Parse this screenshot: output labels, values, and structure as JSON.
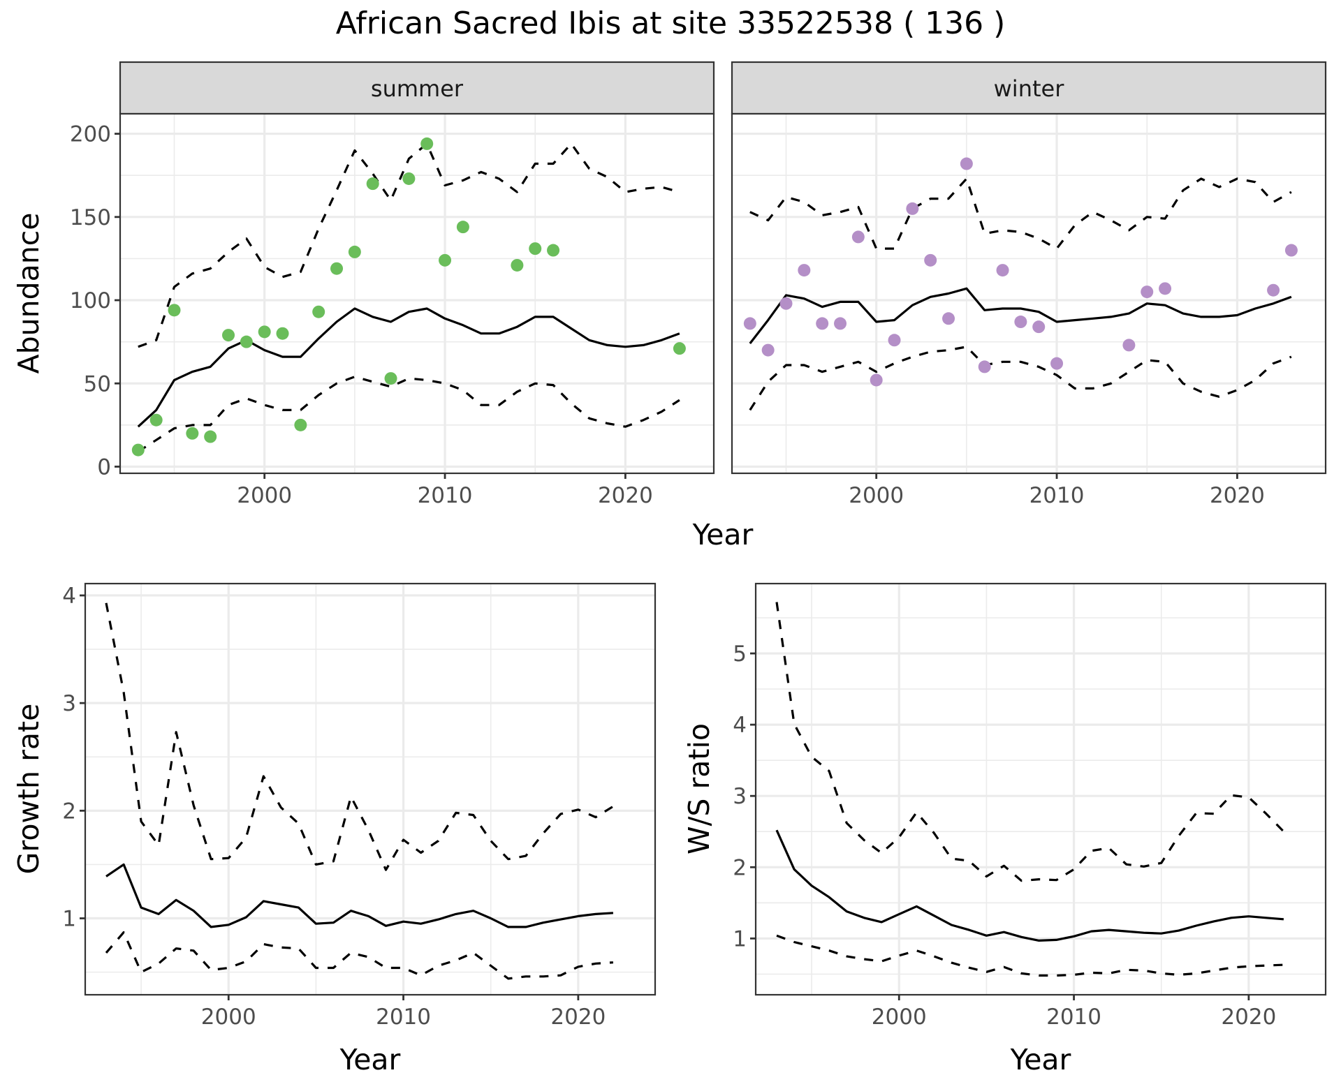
{
  "chart_data": [
    {
      "type": "line",
      "panel": "abundance",
      "title": "African Sacred Ibis at site 33522538 ( 136 )",
      "xlabel": "Year",
      "ylabel": "Abundance",
      "facets": [
        "summer",
        "winter"
      ],
      "xlim": [
        1992,
        2024.9
      ],
      "ylim": [
        -4,
        212
      ],
      "x_ticks": [
        2000,
        2010,
        2020
      ],
      "y_ticks": [
        0,
        50,
        100,
        150,
        200
      ],
      "grid": true,
      "years": [
        1993,
        1994,
        1995,
        1996,
        1997,
        1998,
        1999,
        2000,
        2001,
        2002,
        2003,
        2004,
        2005,
        2006,
        2007,
        2008,
        2009,
        2010,
        2011,
        2012,
        2013,
        2014,
        2015,
        2016,
        2017,
        2018,
        2019,
        2020,
        2021,
        2022,
        2023
      ],
      "series": [
        {
          "facet": "summer",
          "point_color": "#6abd5a",
          "points": {
            "x": [
              1993,
              1994,
              1995,
              1996,
              1997,
              1998,
              1999,
              2000,
              2001,
              2002,
              2003,
              2004,
              2005,
              2006,
              2007,
              2008,
              2009,
              2010,
              2011,
              2014,
              2015,
              2016,
              2023
            ],
            "y": [
              10,
              28,
              94,
              20,
              18,
              79,
              75,
              81,
              80,
              25,
              93,
              119,
              129,
              170,
              53,
              173,
              194,
              124,
              144,
              121,
              131,
              130,
              71
            ]
          },
          "trend": [
            24,
            34,
            52,
            57,
            60,
            71,
            76,
            70,
            66,
            66,
            77,
            87,
            95,
            90,
            87,
            93,
            95,
            89,
            85,
            80,
            80,
            84,
            90,
            90,
            83,
            76,
            73,
            72,
            73,
            76,
            80
          ],
          "upper": [
            72,
            76,
            108,
            116,
            119,
            129,
            137,
            120,
            114,
            117,
            143,
            166,
            190,
            176,
            160,
            185,
            194,
            169,
            172,
            177,
            173,
            165,
            182,
            182,
            194,
            179,
            174,
            165,
            167,
            168,
            165
          ],
          "lower": [
            9,
            16,
            23,
            25,
            25,
            37,
            41,
            37,
            34,
            34,
            43,
            50,
            54,
            51,
            48,
            53,
            52,
            50,
            46,
            37,
            37,
            45,
            50,
            49,
            38,
            29,
            26,
            24,
            28,
            33,
            40
          ]
        },
        {
          "facet": "winter",
          "point_color": "#b48fc7",
          "points": {
            "x": [
              1993,
              1994,
              1995,
              1996,
              1997,
              1998,
              1999,
              2000,
              2001,
              2002,
              2003,
              2004,
              2005,
              2006,
              2007,
              2008,
              2009,
              2010,
              2014,
              2015,
              2016,
              2022,
              2023
            ],
            "y": [
              86,
              70,
              98,
              118,
              86,
              86,
              138,
              52,
              76,
              155,
              124,
              89,
              182,
              60,
              118,
              87,
              84,
              62,
              73,
              105,
              107,
              106,
              130
            ]
          },
          "trend": [
            74,
            88,
            103,
            101,
            96,
            99,
            99,
            87,
            88,
            97,
            102,
            104,
            107,
            94,
            95,
            95,
            93,
            87,
            88,
            89,
            90,
            92,
            98,
            97,
            92,
            90,
            90,
            91,
            95,
            98,
            102
          ],
          "upper": [
            153,
            148,
            162,
            159,
            151,
            153,
            156,
            131,
            131,
            155,
            161,
            161,
            173,
            140,
            142,
            141,
            137,
            131,
            145,
            153,
            148,
            142,
            150,
            149,
            166,
            173,
            168,
            173,
            171,
            159,
            165
          ],
          "lower": [
            34,
            51,
            61,
            61,
            57,
            60,
            63,
            57,
            62,
            66,
            69,
            70,
            72,
            61,
            63,
            63,
            60,
            55,
            47,
            47,
            50,
            57,
            64,
            63,
            50,
            45,
            42,
            46,
            52,
            62,
            66
          ]
        }
      ]
    },
    {
      "type": "line",
      "panel": "growth",
      "xlabel": "Year",
      "ylabel": "Growth rate",
      "xlim": [
        1991.8,
        2024.4
      ],
      "ylim": [
        0.29,
        4.11
      ],
      "x_ticks": [
        2000,
        2010,
        2020
      ],
      "y_ticks": [
        1,
        2,
        3,
        4
      ],
      "grid": true,
      "years": [
        1993,
        1994,
        1995,
        1996,
        1997,
        1998,
        1999,
        2000,
        2001,
        2002,
        2003,
        2004,
        2005,
        2006,
        2007,
        2008,
        2009,
        2010,
        2011,
        2012,
        2013,
        2014,
        2015,
        2016,
        2017,
        2018,
        2019,
        2020,
        2021,
        2022
      ],
      "trend": [
        1.39,
        1.5,
        1.1,
        1.04,
        1.17,
        1.07,
        0.92,
        0.94,
        1.01,
        1.16,
        1.13,
        1.1,
        0.95,
        0.96,
        1.07,
        1.02,
        0.93,
        0.97,
        0.95,
        0.99,
        1.04,
        1.07,
        1.0,
        0.92,
        0.92,
        0.96,
        0.99,
        1.02,
        1.04,
        1.05
      ],
      "upper": [
        3.93,
        3.1,
        1.9,
        1.68,
        2.73,
        2.05,
        1.55,
        1.56,
        1.75,
        2.32,
        2.03,
        1.88,
        1.5,
        1.53,
        2.13,
        1.82,
        1.45,
        1.73,
        1.61,
        1.72,
        1.98,
        1.96,
        1.72,
        1.55,
        1.58,
        1.79,
        1.97,
        2.01,
        1.94,
        2.04
      ],
      "lower": [
        0.68,
        0.87,
        0.5,
        0.58,
        0.72,
        0.7,
        0.52,
        0.54,
        0.6,
        0.76,
        0.73,
        0.72,
        0.54,
        0.54,
        0.68,
        0.64,
        0.54,
        0.54,
        0.47,
        0.56,
        0.61,
        0.68,
        0.56,
        0.44,
        0.46,
        0.46,
        0.47,
        0.55,
        0.58,
        0.59
      ]
    },
    {
      "type": "line",
      "panel": "ratio",
      "xlabel": "Year",
      "ylabel": "W/S ratio",
      "xlim": [
        1991.8,
        2024.4
      ],
      "ylim": [
        0.21,
        5.98
      ],
      "x_ticks": [
        2000,
        2010,
        2020
      ],
      "y_ticks": [
        1,
        2,
        3,
        4,
        5
      ],
      "grid": true,
      "years": [
        1993,
        1994,
        1995,
        1996,
        1997,
        1998,
        1999,
        2000,
        2001,
        2002,
        2003,
        2004,
        2005,
        2006,
        2007,
        2008,
        2009,
        2010,
        2011,
        2012,
        2013,
        2014,
        2015,
        2016,
        2017,
        2018,
        2019,
        2020,
        2021,
        2022
      ],
      "trend": [
        2.52,
        1.97,
        1.74,
        1.58,
        1.38,
        1.29,
        1.23,
        1.34,
        1.45,
        1.32,
        1.19,
        1.12,
        1.04,
        1.09,
        1.02,
        0.97,
        0.98,
        1.03,
        1.1,
        1.12,
        1.1,
        1.08,
        1.07,
        1.11,
        1.18,
        1.24,
        1.29,
        1.31,
        1.29,
        1.27
      ],
      "upper": [
        5.72,
        4.01,
        3.55,
        3.35,
        2.62,
        2.38,
        2.2,
        2.42,
        2.77,
        2.48,
        2.12,
        2.09,
        1.87,
        2.02,
        1.81,
        1.83,
        1.82,
        1.97,
        2.23,
        2.27,
        2.04,
        2.01,
        2.06,
        2.44,
        2.76,
        2.75,
        3.01,
        2.98,
        2.75,
        2.5
      ],
      "lower": [
        1.04,
        0.95,
        0.89,
        0.83,
        0.75,
        0.71,
        0.68,
        0.76,
        0.83,
        0.75,
        0.66,
        0.59,
        0.53,
        0.6,
        0.51,
        0.48,
        0.48,
        0.49,
        0.52,
        0.51,
        0.56,
        0.55,
        0.51,
        0.49,
        0.51,
        0.55,
        0.59,
        0.61,
        0.62,
        0.63
      ]
    }
  ]
}
